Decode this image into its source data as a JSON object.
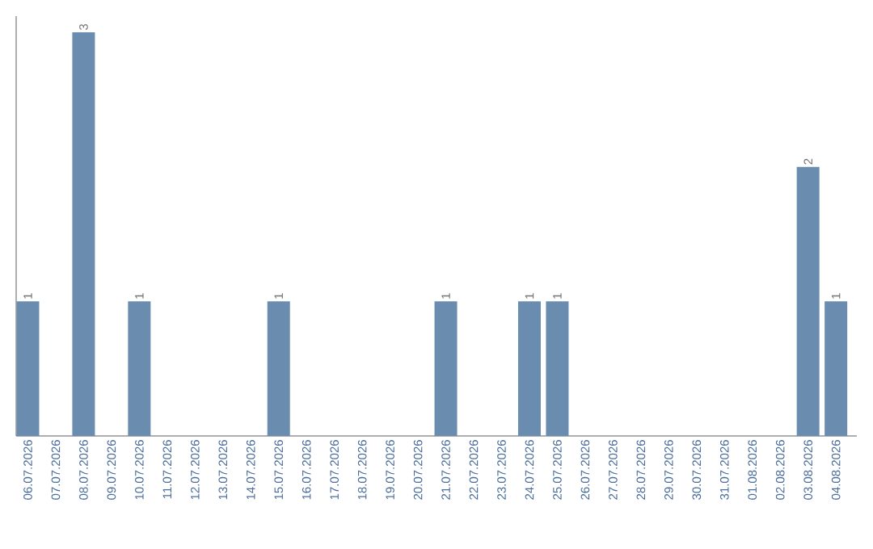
{
  "chart_data": {
    "type": "bar",
    "categories": [
      "06.07.2026",
      "07.07.2026",
      "08.07.2026",
      "09.07.2026",
      "10.07.2026",
      "11.07.2026",
      "12.07.2026",
      "13.07.2026",
      "14.07.2026",
      "15.07.2026",
      "16.07.2026",
      "17.07.2026",
      "18.07.2026",
      "19.07.2026",
      "20.07.2026",
      "21.07.2026",
      "22.07.2026",
      "23.07.2026",
      "24.07.2026",
      "25.07.2026",
      "26.07.2026",
      "27.07.2026",
      "28.07.2026",
      "29.07.2026",
      "30.07.2026",
      "31.07.2026",
      "01.08.2026",
      "02.08.2026",
      "03.08.2026",
      "04.08.2026"
    ],
    "values": [
      1,
      0,
      3,
      0,
      1,
      0,
      0,
      0,
      0,
      1,
      0,
      0,
      0,
      0,
      0,
      1,
      0,
      0,
      1,
      1,
      0,
      0,
      0,
      0,
      0,
      0,
      0,
      0,
      2,
      1
    ],
    "value_labels": [
      "1",
      null,
      "3",
      null,
      "1",
      null,
      null,
      null,
      null,
      "1",
      null,
      null,
      null,
      null,
      null,
      "1",
      null,
      null,
      "1",
      "1",
      null,
      null,
      null,
      null,
      null,
      null,
      null,
      null,
      "2",
      "1"
    ],
    "color": "#6a8caf",
    "tick_labels": "x"
  }
}
